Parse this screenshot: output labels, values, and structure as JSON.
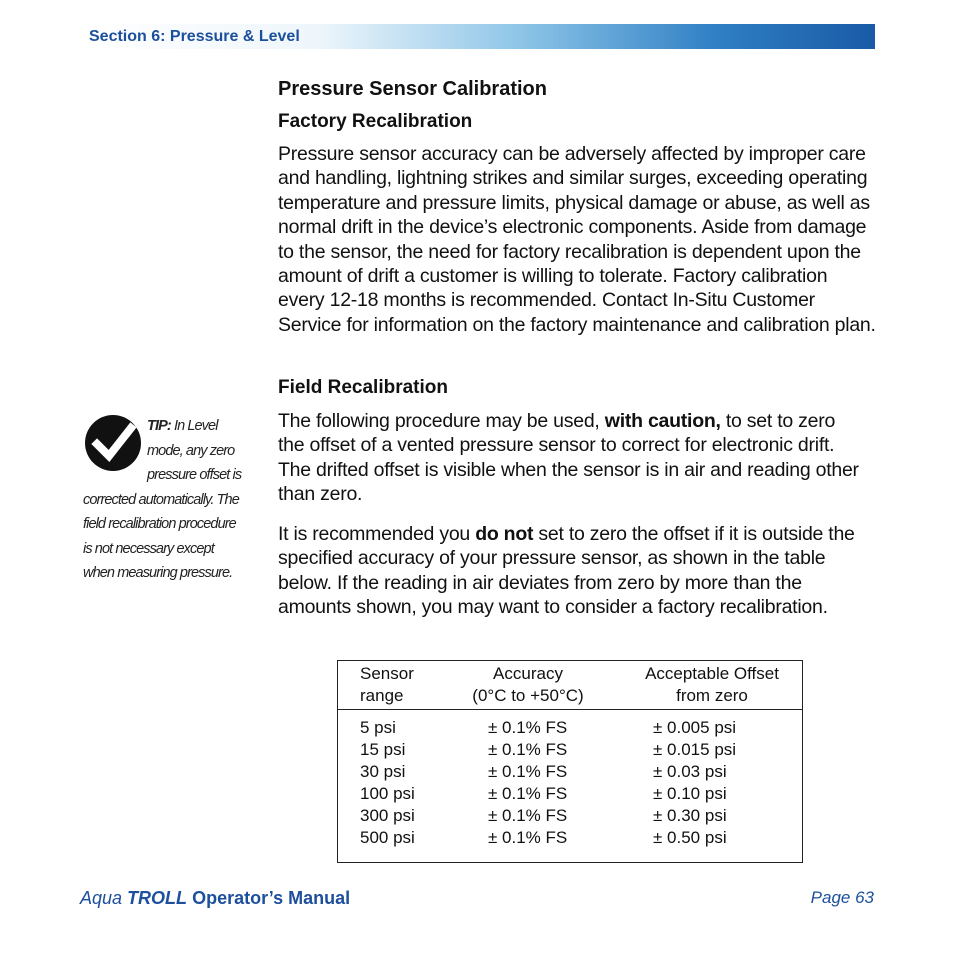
{
  "header": {
    "section": "Section 6: Pressure & Level"
  },
  "title": "Pressure Sensor Calibration",
  "factory": {
    "heading": "Factory Recalibration",
    "paragraph": "Pressure sensor accuracy can be adversely affected by improper care and handling, lightning strikes and similar surges, exceeding operating temperature and pressure limits, physical damage or abuse, as well as normal drift in the device’s electronic components. Aside from damage to the sensor, the need for factory recalibration is dependent upon the amount of drift a customer is willing to tolerate. Factory calibration every 12-18 months is recommended. Contact In-Situ Customer Service for information on the factory maintenance and calibration plan."
  },
  "field": {
    "heading": "Field Recalibration",
    "paragraphs": [
      [
        "The following procedure may be used, ",
        "with caution,",
        " to set to zero the offset of a vented pressure sensor to correct for electronic drift. The drifted offset is visible when the sensor is in air and reading other than zero."
      ],
      [
        "It is recommended you ",
        "do not",
        " set to zero the offset if it is outside the specified accuracy of your pressure sensor, as shown in the table below. If the reading in air deviates from zero by more than the amounts shown, you may want to consider a factory recalibration."
      ]
    ]
  },
  "tip": {
    "label": "TIP:",
    "text": "In Level mode, any zero pressure offset is corrected automatically. The field recalibration procedure is not necessary except when measuring pressure."
  },
  "table": {
    "header": [
      [
        "Sensor",
        "range"
      ],
      [
        "Accuracy",
        "(0°C to +50°C)"
      ],
      [
        "Acceptable Offset",
        "from zero"
      ]
    ],
    "rows": [
      [
        "5 psi",
        "± 0.1% FS",
        "± 0.005 psi"
      ],
      [
        "15 psi",
        "± 0.1% FS",
        "± 0.015 psi"
      ],
      [
        "30 psi",
        "± 0.1% FS",
        "± 0.03 psi"
      ],
      [
        "100 psi",
        "± 0.1% FS",
        "± 0.10 psi"
      ],
      [
        "300 psi",
        "± 0.1% FS",
        "± 0.30 psi"
      ],
      [
        "500 psi",
        "± 0.1% FS",
        "± 0.50 psi"
      ]
    ]
  },
  "footer": {
    "brand": "Aqua",
    "product": "TROLL",
    "manual": "Operator’s Manual",
    "page": "Page 63"
  }
}
